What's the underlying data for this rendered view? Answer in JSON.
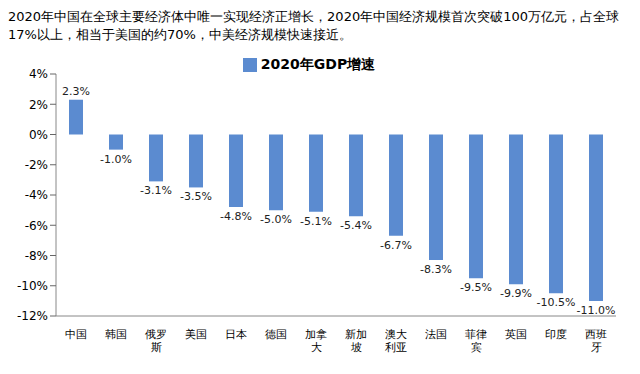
{
  "chart_data": {
    "type": "bar",
    "title": "2020年中国在全球主要经济体中唯一实现经济正增长，2020年中国经济规模首次突破100万亿元，占全球17%以上，相当于美国的约70%，中美经济规模快速接近。",
    "categories": [
      "中国",
      "韩国",
      "俄罗斯",
      "美国",
      "日本",
      "德国",
      "加拿大",
      "新加坡",
      "澳大利亚",
      "法国",
      "菲律宾",
      "英国",
      "印度",
      "西班牙"
    ],
    "series": [
      {
        "name": "2020年GDP增速",
        "color": "#5b8bd0",
        "values": [
          2.3,
          -1.0,
          -3.1,
          -3.5,
          -4.8,
          -5.0,
          -5.1,
          -5.4,
          -6.7,
          -8.3,
          -9.5,
          -9.9,
          -10.5,
          -11.0
        ],
        "value_labels": [
          "2.3%",
          "-1.0%",
          "-3.1%",
          "-3.5%",
          "-4.8%",
          "-5.0%",
          "-5.1%",
          "-5.4%",
          "-6.7%",
          "-8.3%",
          "-9.5%",
          "-9.9%",
          "-10.5%",
          "-11.0%"
        ]
      }
    ],
    "ylim": [
      -12,
      4
    ],
    "yticks": [
      {
        "value": -12,
        "label": "-12%"
      },
      {
        "value": -10,
        "label": "-10%"
      },
      {
        "value": -8,
        "label": "-8%"
      },
      {
        "value": -6,
        "label": "-6%"
      },
      {
        "value": -4,
        "label": "-4%"
      },
      {
        "value": -2,
        "label": "-2%"
      },
      {
        "value": 0,
        "label": "0%"
      },
      {
        "value": 2,
        "label": "2%"
      },
      {
        "value": 4,
        "label": "4%"
      }
    ],
    "grid": false,
    "legend": "top",
    "data_labels": true
  }
}
